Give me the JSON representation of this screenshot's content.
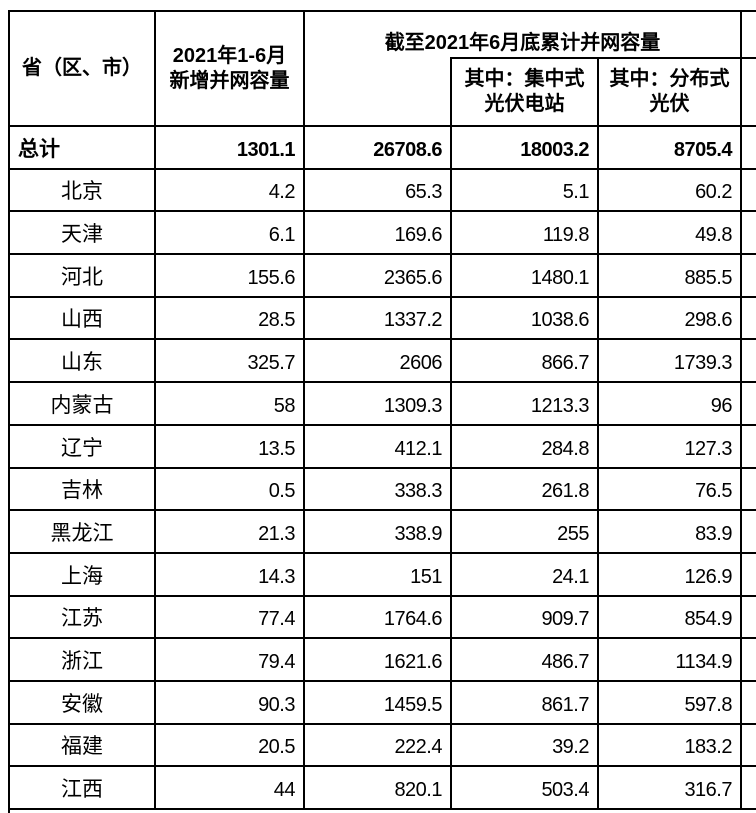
{
  "header": {
    "province": "省（区、市）",
    "new_capacity_line1": "2021年1-6月",
    "new_capacity_line2": "新增并网容量",
    "cumulative_span": "截至2021年6月底累计并网容量",
    "centralized_line1": "其中：集中式",
    "centralized_line2": "光伏电站",
    "distributed_line1": "其中：分布式",
    "distributed_line2": "光伏"
  },
  "table": {
    "total_row": {
      "label": "总计",
      "values": [
        "1301.1",
        "26708.6",
        "18003.2",
        "8705.4"
      ]
    },
    "rows": [
      {
        "label": "北京",
        "values": [
          "4.2",
          "65.3",
          "5.1",
          "60.2"
        ]
      },
      {
        "label": "天津",
        "values": [
          "6.1",
          "169.6",
          "119.8",
          "49.8"
        ]
      },
      {
        "label": "河北",
        "values": [
          "155.6",
          "2365.6",
          "1480.1",
          "885.5"
        ]
      },
      {
        "label": "山西",
        "values": [
          "28.5",
          "1337.2",
          "1038.6",
          "298.6"
        ]
      },
      {
        "label": "山东",
        "values": [
          "325.7",
          "2606",
          "866.7",
          "1739.3"
        ]
      },
      {
        "label": "内蒙古",
        "values": [
          "58",
          "1309.3",
          "1213.3",
          "96"
        ]
      },
      {
        "label": "辽宁",
        "values": [
          "13.5",
          "412.1",
          "284.8",
          "127.3"
        ]
      },
      {
        "label": "吉林",
        "values": [
          "0.5",
          "338.3",
          "261.8",
          "76.5"
        ]
      },
      {
        "label": "黑龙江",
        "values": [
          "21.3",
          "338.9",
          "255",
          "83.9"
        ]
      },
      {
        "label": "上海",
        "values": [
          "14.3",
          "151",
          "24.1",
          "126.9"
        ]
      },
      {
        "label": "江苏",
        "values": [
          "77.4",
          "1764.6",
          "909.7",
          "854.9"
        ]
      },
      {
        "label": "浙江",
        "values": [
          "79.4",
          "1621.6",
          "486.7",
          "1134.9"
        ]
      },
      {
        "label": "安徽",
        "values": [
          "90.3",
          "1459.5",
          "861.7",
          "597.8"
        ]
      },
      {
        "label": "福建",
        "values": [
          "20.5",
          "222.4",
          "39.2",
          "183.2"
        ]
      },
      {
        "label": "江西",
        "values": [
          "44",
          "820.1",
          "503.4",
          "316.7"
        ]
      }
    ]
  },
  "chart_data": {
    "type": "table",
    "columns": [
      "省（区、市）",
      "2021年1-6月新增并网容量",
      "截至2021年6月底累计并网容量",
      "其中：集中式光伏电站",
      "其中：分布式光伏"
    ],
    "rows": [
      [
        "总计",
        "1301.1",
        "26708.6",
        "18003.2",
        "8705.4"
      ],
      [
        "北京",
        "4.2",
        "65.3",
        "5.1",
        "60.2"
      ],
      [
        "天津",
        "6.1",
        "169.6",
        "119.8",
        "49.8"
      ],
      [
        "河北",
        "155.6",
        "2365.6",
        "1480.1",
        "885.5"
      ],
      [
        "山西",
        "28.5",
        "1337.2",
        "1038.6",
        "298.6"
      ],
      [
        "山东",
        "325.7",
        "2606",
        "866.7",
        "1739.3"
      ],
      [
        "内蒙古",
        "58",
        "1309.3",
        "1213.3",
        "96"
      ],
      [
        "辽宁",
        "13.5",
        "412.1",
        "284.8",
        "127.3"
      ],
      [
        "吉林",
        "0.5",
        "338.3",
        "261.8",
        "76.5"
      ],
      [
        "黑龙江",
        "21.3",
        "338.9",
        "255",
        "83.9"
      ],
      [
        "上海",
        "14.3",
        "151",
        "24.1",
        "126.9"
      ],
      [
        "江苏",
        "77.4",
        "1764.6",
        "909.7",
        "854.9"
      ],
      [
        "浙江",
        "79.4",
        "1621.6",
        "486.7",
        "1134.9"
      ],
      [
        "安徽",
        "90.3",
        "1459.5",
        "861.7",
        "597.8"
      ],
      [
        "福建",
        "20.5",
        "222.4",
        "39.2",
        "183.2"
      ],
      [
        "江西",
        "44",
        "820.1",
        "503.4",
        "316.7"
      ]
    ]
  }
}
